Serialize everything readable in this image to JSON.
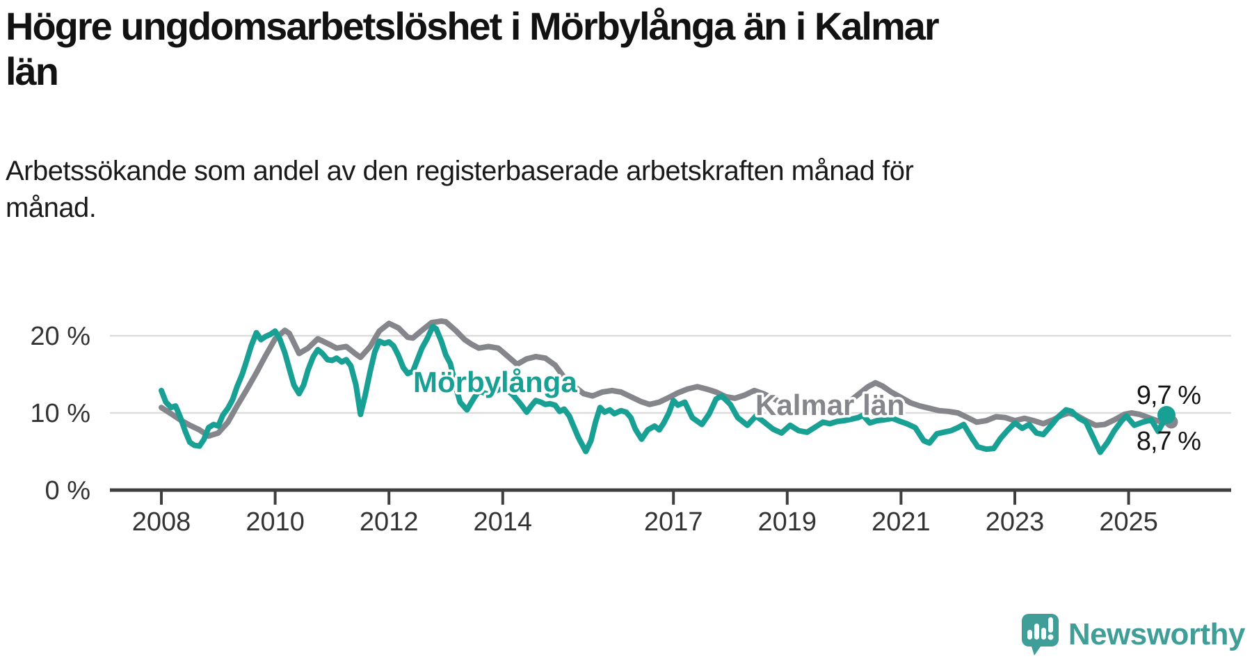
{
  "header": {
    "title": "Högre ungdomsarbetslöshet i Mörbylånga än i Kalmar län",
    "title_lines": [
      "Högre ungdomsarbetslöshet i Mörbylånga än i Kalmar",
      "län"
    ],
    "subtitle": "Arbetssökande som andel av den registerbaserade arbetskraften månad för månad.",
    "subtitle_lines": [
      "Arbetssökande som andel av den registerbaserade arbetskraften månad för",
      "månad."
    ]
  },
  "footer": {
    "brand": "Newsworthy"
  },
  "colors": {
    "morbylanga": "#18a095",
    "kalmar_lan": "#85868b",
    "gridline": "#dcdcdc",
    "axis": "#3f3f3f",
    "text": "#1a1a1a",
    "logo_teal": "#3f9e97"
  },
  "chart_data": {
    "type": "line",
    "title": "Högre ungdomsarbetslöshet i Mörbylånga än i Kalmar län",
    "subtitle": "Arbetssökande som andel av den registerbaserade arbetskraften månad för månad.",
    "unit": "%",
    "x_axis": {
      "ticks": [
        2008,
        2010,
        2012,
        2014,
        2017,
        2019,
        2021,
        2023,
        2025
      ],
      "range_years": [
        2007.1,
        2026.8
      ],
      "grid": false
    },
    "y_axis": {
      "tick_values": [
        0,
        10,
        20
      ],
      "tick_labels": [
        "0 %",
        "10 %",
        "20 %"
      ],
      "range": [
        0,
        23.5
      ],
      "grid": true
    },
    "legend_position": "inline-labels",
    "series": [
      {
        "name": "Kalmar län",
        "line_label": "Kalmar län",
        "color": "#85868b",
        "end_value": 8.7,
        "end_label": "8,7 %",
        "points": [
          [
            2008.0,
            10.7
          ],
          [
            2008.17,
            9.9
          ],
          [
            2008.33,
            9.1
          ],
          [
            2008.5,
            8.4
          ],
          [
            2008.67,
            7.8
          ],
          [
            2008.83,
            7.0
          ],
          [
            2009.0,
            7.4
          ],
          [
            2009.17,
            8.8
          ],
          [
            2009.33,
            10.9
          ],
          [
            2009.5,
            13.0
          ],
          [
            2009.67,
            15.2
          ],
          [
            2009.83,
            17.4
          ],
          [
            2010.0,
            19.6
          ],
          [
            2010.17,
            20.7
          ],
          [
            2010.25,
            20.3
          ],
          [
            2010.42,
            17.7
          ],
          [
            2010.58,
            18.4
          ],
          [
            2010.75,
            19.6
          ],
          [
            2010.92,
            19.0
          ],
          [
            2011.08,
            18.4
          ],
          [
            2011.25,
            18.6
          ],
          [
            2011.42,
            17.6
          ],
          [
            2011.5,
            17.2
          ],
          [
            2011.67,
            18.6
          ],
          [
            2011.83,
            20.6
          ],
          [
            2012.0,
            21.6
          ],
          [
            2012.17,
            21.0
          ],
          [
            2012.33,
            19.8
          ],
          [
            2012.42,
            19.7
          ],
          [
            2012.58,
            20.7
          ],
          [
            2012.75,
            21.7
          ],
          [
            2012.92,
            21.9
          ],
          [
            2013.0,
            21.8
          ],
          [
            2013.17,
            20.7
          ],
          [
            2013.33,
            19.5
          ],
          [
            2013.45,
            18.9
          ],
          [
            2013.58,
            18.4
          ],
          [
            2013.75,
            18.6
          ],
          [
            2013.92,
            18.4
          ],
          [
            2014.08,
            17.4
          ],
          [
            2014.25,
            16.3
          ],
          [
            2014.42,
            17.0
          ],
          [
            2014.58,
            17.3
          ],
          [
            2014.75,
            17.1
          ],
          [
            2014.92,
            16.2
          ],
          [
            2015.08,
            14.6
          ],
          [
            2015.25,
            13.5
          ],
          [
            2015.42,
            12.5
          ],
          [
            2015.58,
            12.2
          ],
          [
            2015.75,
            12.7
          ],
          [
            2015.92,
            12.9
          ],
          [
            2016.08,
            12.7
          ],
          [
            2016.25,
            12.1
          ],
          [
            2016.42,
            11.5
          ],
          [
            2016.58,
            11.1
          ],
          [
            2016.75,
            11.4
          ],
          [
            2016.92,
            12.0
          ],
          [
            2017.08,
            12.6
          ],
          [
            2017.25,
            13.1
          ],
          [
            2017.42,
            13.4
          ],
          [
            2017.58,
            13.1
          ],
          [
            2017.75,
            12.7
          ],
          [
            2017.92,
            12.1
          ],
          [
            2018.08,
            11.9
          ],
          [
            2018.25,
            12.3
          ],
          [
            2018.42,
            12.9
          ],
          [
            2018.58,
            12.5
          ],
          [
            2018.75,
            11.9
          ],
          [
            2018.92,
            11.2
          ],
          [
            2019.08,
            10.7
          ],
          [
            2019.25,
            10.4
          ],
          [
            2019.42,
            10.5
          ],
          [
            2019.58,
            10.7
          ],
          [
            2019.75,
            10.6
          ],
          [
            2019.92,
            10.8
          ],
          [
            2020.08,
            11.4
          ],
          [
            2020.25,
            12.4
          ],
          [
            2020.42,
            13.4
          ],
          [
            2020.55,
            13.9
          ],
          [
            2020.67,
            13.5
          ],
          [
            2020.83,
            12.7
          ],
          [
            2021.0,
            12.0
          ],
          [
            2021.17,
            11.3
          ],
          [
            2021.33,
            10.9
          ],
          [
            2021.5,
            10.6
          ],
          [
            2021.67,
            10.3
          ],
          [
            2021.83,
            10.2
          ],
          [
            2022.0,
            10.0
          ],
          [
            2022.17,
            9.4
          ],
          [
            2022.33,
            8.8
          ],
          [
            2022.5,
            9.0
          ],
          [
            2022.67,
            9.5
          ],
          [
            2022.83,
            9.4
          ],
          [
            2023.0,
            9.0
          ],
          [
            2023.17,
            9.3
          ],
          [
            2023.33,
            9.0
          ],
          [
            2023.5,
            8.6
          ],
          [
            2023.67,
            9.1
          ],
          [
            2023.83,
            9.7
          ],
          [
            2023.95,
            10.0
          ],
          [
            2024.08,
            9.7
          ],
          [
            2024.25,
            9.0
          ],
          [
            2024.42,
            8.4
          ],
          [
            2024.58,
            8.5
          ],
          [
            2024.75,
            9.1
          ],
          [
            2024.92,
            9.8
          ],
          [
            2025.05,
            10.0
          ],
          [
            2025.2,
            9.8
          ],
          [
            2025.35,
            9.4
          ],
          [
            2025.5,
            9.0
          ],
          [
            2025.67,
            8.7
          ]
        ]
      },
      {
        "name": "Mörbylånga",
        "line_label": "Mörbylånga",
        "color": "#18a095",
        "end_value": 9.7,
        "end_label": "9,7 %",
        "points": [
          [
            2008.0,
            12.9
          ],
          [
            2008.08,
            11.4
          ],
          [
            2008.17,
            10.7
          ],
          [
            2008.25,
            10.9
          ],
          [
            2008.33,
            9.5
          ],
          [
            2008.42,
            7.6
          ],
          [
            2008.5,
            6.2
          ],
          [
            2008.58,
            5.8
          ],
          [
            2008.67,
            5.7
          ],
          [
            2008.75,
            6.6
          ],
          [
            2008.83,
            8.1
          ],
          [
            2008.92,
            8.5
          ],
          [
            2009.0,
            8.3
          ],
          [
            2009.08,
            9.7
          ],
          [
            2009.17,
            10.6
          ],
          [
            2009.25,
            11.7
          ],
          [
            2009.33,
            13.4
          ],
          [
            2009.42,
            15.0
          ],
          [
            2009.5,
            16.8
          ],
          [
            2009.58,
            18.7
          ],
          [
            2009.67,
            20.4
          ],
          [
            2009.75,
            19.5
          ],
          [
            2009.83,
            19.9
          ],
          [
            2009.92,
            20.2
          ],
          [
            2010.0,
            20.6
          ],
          [
            2010.08,
            19.6
          ],
          [
            2010.17,
            17.8
          ],
          [
            2010.25,
            15.7
          ],
          [
            2010.33,
            13.6
          ],
          [
            2010.42,
            12.5
          ],
          [
            2010.5,
            13.6
          ],
          [
            2010.58,
            15.6
          ],
          [
            2010.67,
            17.3
          ],
          [
            2010.75,
            18.2
          ],
          [
            2010.83,
            17.7
          ],
          [
            2010.92,
            16.9
          ],
          [
            2011.0,
            16.8
          ],
          [
            2011.08,
            17.1
          ],
          [
            2011.17,
            16.6
          ],
          [
            2011.25,
            16.9
          ],
          [
            2011.33,
            16.1
          ],
          [
            2011.42,
            13.6
          ],
          [
            2011.5,
            9.8
          ],
          [
            2011.58,
            12.2
          ],
          [
            2011.67,
            15.4
          ],
          [
            2011.75,
            17.9
          ],
          [
            2011.83,
            19.3
          ],
          [
            2011.92,
            19.0
          ],
          [
            2012.0,
            19.2
          ],
          [
            2012.08,
            18.7
          ],
          [
            2012.17,
            17.4
          ],
          [
            2012.25,
            15.9
          ],
          [
            2012.33,
            15.1
          ],
          [
            2012.42,
            15.4
          ],
          [
            2012.5,
            16.9
          ],
          [
            2012.58,
            18.4
          ],
          [
            2012.67,
            19.6
          ],
          [
            2012.77,
            21.2
          ],
          [
            2012.83,
            20.9
          ],
          [
            2012.92,
            19.3
          ],
          [
            2013.0,
            17.5
          ],
          [
            2013.08,
            16.4
          ],
          [
            2013.17,
            13.5
          ],
          [
            2013.25,
            11.4
          ],
          [
            2013.37,
            10.4
          ],
          [
            2013.5,
            12.0
          ],
          [
            2013.58,
            12.8
          ],
          [
            2013.67,
            12.6
          ],
          [
            2013.75,
            12.4
          ],
          [
            2013.83,
            12.7
          ],
          [
            2013.92,
            13.0
          ],
          [
            2014.0,
            13.1
          ],
          [
            2014.08,
            12.9
          ],
          [
            2014.17,
            12.4
          ],
          [
            2014.3,
            11.3
          ],
          [
            2014.42,
            10.1
          ],
          [
            2014.5,
            10.9
          ],
          [
            2014.58,
            11.6
          ],
          [
            2014.67,
            11.4
          ],
          [
            2014.75,
            11.1
          ],
          [
            2014.83,
            11.2
          ],
          [
            2014.92,
            11.0
          ],
          [
            2015.0,
            10.2
          ],
          [
            2015.08,
            10.5
          ],
          [
            2015.17,
            9.6
          ],
          [
            2015.25,
            8.2
          ],
          [
            2015.33,
            6.8
          ],
          [
            2015.46,
            5.0
          ],
          [
            2015.55,
            6.4
          ],
          [
            2015.63,
            8.8
          ],
          [
            2015.71,
            10.7
          ],
          [
            2015.79,
            10.1
          ],
          [
            2015.88,
            10.4
          ],
          [
            2015.96,
            9.9
          ],
          [
            2016.08,
            10.3
          ],
          [
            2016.17,
            10.1
          ],
          [
            2016.25,
            9.4
          ],
          [
            2016.33,
            7.9
          ],
          [
            2016.44,
            6.6
          ],
          [
            2016.55,
            7.8
          ],
          [
            2016.67,
            8.3
          ],
          [
            2016.75,
            7.8
          ],
          [
            2016.83,
            8.7
          ],
          [
            2016.92,
            10.0
          ],
          [
            2017.0,
            11.6
          ],
          [
            2017.08,
            11.0
          ],
          [
            2017.2,
            11.4
          ],
          [
            2017.33,
            9.4
          ],
          [
            2017.5,
            8.5
          ],
          [
            2017.63,
            9.9
          ],
          [
            2017.75,
            11.8
          ],
          [
            2017.85,
            12.2
          ],
          [
            2018.0,
            11.1
          ],
          [
            2018.13,
            9.4
          ],
          [
            2018.3,
            8.4
          ],
          [
            2018.45,
            9.6
          ],
          [
            2018.58,
            8.9
          ],
          [
            2018.75,
            7.9
          ],
          [
            2018.9,
            7.4
          ],
          [
            2019.05,
            8.4
          ],
          [
            2019.2,
            7.7
          ],
          [
            2019.35,
            7.5
          ],
          [
            2019.5,
            8.2
          ],
          [
            2019.63,
            8.8
          ],
          [
            2019.75,
            8.6
          ],
          [
            2019.88,
            8.9
          ],
          [
            2020.0,
            9.0
          ],
          [
            2020.13,
            9.2
          ],
          [
            2020.25,
            9.4
          ],
          [
            2020.33,
            9.7
          ],
          [
            2020.45,
            8.7
          ],
          [
            2020.58,
            9.0
          ],
          [
            2020.7,
            9.1
          ],
          [
            2020.85,
            9.3
          ],
          [
            2020.95,
            9.0
          ],
          [
            2021.1,
            8.6
          ],
          [
            2021.25,
            8.1
          ],
          [
            2021.4,
            6.4
          ],
          [
            2021.5,
            6.1
          ],
          [
            2021.63,
            7.3
          ],
          [
            2021.75,
            7.5
          ],
          [
            2021.88,
            7.7
          ],
          [
            2022.0,
            8.1
          ],
          [
            2022.1,
            8.5
          ],
          [
            2022.25,
            6.7
          ],
          [
            2022.35,
            5.6
          ],
          [
            2022.5,
            5.3
          ],
          [
            2022.63,
            5.4
          ],
          [
            2022.75,
            6.7
          ],
          [
            2022.88,
            7.8
          ],
          [
            2023.0,
            8.7
          ],
          [
            2023.13,
            8.0
          ],
          [
            2023.25,
            8.5
          ],
          [
            2023.38,
            7.4
          ],
          [
            2023.5,
            7.2
          ],
          [
            2023.63,
            8.3
          ],
          [
            2023.75,
            9.4
          ],
          [
            2023.9,
            10.4
          ],
          [
            2024.0,
            10.2
          ],
          [
            2024.13,
            9.3
          ],
          [
            2024.25,
            8.8
          ],
          [
            2024.38,
            6.8
          ],
          [
            2024.5,
            4.9
          ],
          [
            2024.63,
            6.2
          ],
          [
            2024.75,
            7.7
          ],
          [
            2024.88,
            9.0
          ],
          [
            2024.96,
            9.6
          ],
          [
            2025.1,
            8.4
          ],
          [
            2025.25,
            8.8
          ],
          [
            2025.4,
            9.1
          ],
          [
            2025.52,
            7.6
          ],
          [
            2025.67,
            9.7
          ]
        ]
      }
    ]
  }
}
